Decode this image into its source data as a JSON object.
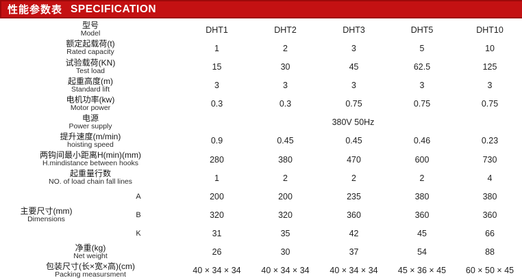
{
  "header": {
    "title_cn": "性能参数表",
    "title_en": "SPECIFICATION",
    "bar_color": "#c41112",
    "bar_border_color": "#9d0a0a"
  },
  "colors": {
    "shaded_row": "#e8e8e8",
    "text": "#1f1f1f"
  },
  "table": {
    "models_row": {
      "label_cn": "型号",
      "label_en": "Model",
      "values": [
        "DHT1",
        "DHT2",
        "DHT3",
        "DHT5",
        "DHT10"
      ]
    },
    "rows": [
      {
        "label_cn": "额定起载荷(t)",
        "label_en": "Rated capacity",
        "values": [
          "1",
          "2",
          "3",
          "5",
          "10"
        ]
      },
      {
        "label_cn": "试验载荷(KN)",
        "label_en": "Test load",
        "values": [
          "15",
          "30",
          "45",
          "62.5",
          "125"
        ]
      },
      {
        "label_cn": "起重高度(m)",
        "label_en": "Standard lift",
        "values": [
          "3",
          "3",
          "3",
          "3",
          "3"
        ]
      },
      {
        "label_cn": "电机功率(kw)",
        "label_en": "Motor power",
        "values": [
          "0.3",
          "0.3",
          "0.75",
          "0.75",
          "0.75"
        ]
      },
      {
        "label_cn": "电源",
        "label_en": "Power supply",
        "merged_value": "380V 50Hz"
      },
      {
        "label_cn": "提升速度(m/min)",
        "label_en": "hoisting speed",
        "values": [
          "0.9",
          "0.45",
          "0.45",
          "0.46",
          "0.23"
        ]
      },
      {
        "label_cn": "两钩间最小距离H(min)(mm)",
        "label_en": "H.mindistance between hooks",
        "values": [
          "280",
          "380",
          "470",
          "600",
          "730"
        ]
      },
      {
        "label_cn": "起重量行数",
        "label_en": "NO. of load chain fall lines",
        "values": [
          "1",
          "2",
          "2",
          "2",
          "4"
        ]
      }
    ],
    "dimensions": {
      "label_cn": "主要尺寸(mm)",
      "label_en": "Dimensions",
      "sub_rows": [
        {
          "key": "A",
          "values": [
            "200",
            "200",
            "235",
            "380",
            "380"
          ]
        },
        {
          "key": "B",
          "values": [
            "320",
            "320",
            "360",
            "360",
            "360"
          ]
        },
        {
          "key": "K",
          "values": [
            "31",
            "35",
            "42",
            "45",
            "66"
          ]
        }
      ]
    },
    "bottom_rows": [
      {
        "label_cn": "净重(kg)",
        "label_en": "Net weight",
        "values": [
          "26",
          "30",
          "37",
          "54",
          "88"
        ]
      },
      {
        "label_cn": "包装尺寸(长×宽×高)(cm)",
        "label_en": "Packing measursment",
        "values": [
          "40 × 34 × 34",
          "40 × 34 × 34",
          "40 × 34 × 34",
          "45 × 36 × 45",
          "60 × 50 × 45"
        ]
      }
    ]
  }
}
